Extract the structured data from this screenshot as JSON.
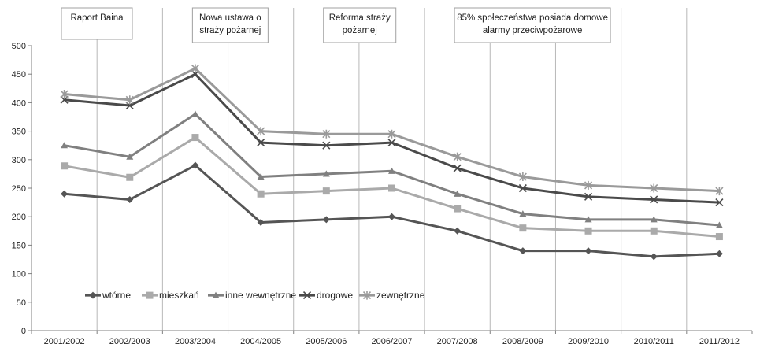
{
  "chart_data": {
    "type": "line",
    "categories": [
      "2001/2002",
      "2002/2003",
      "2003/2004",
      "2004/2005",
      "2005/2006",
      "2006/2007",
      "2007/2008",
      "2008/2009",
      "2009/2010",
      "2010/2011",
      "2011/2012"
    ],
    "ylim": [
      0,
      500
    ],
    "yticks": [
      0,
      50,
      100,
      150,
      200,
      250,
      300,
      350,
      400,
      450,
      500
    ],
    "grid": "vertical category separators",
    "legend_placement": "inside lower-left",
    "series": [
      {
        "name": "wtórne",
        "marker": "diamond",
        "color": "#555555",
        "values": [
          240,
          230,
          290,
          190,
          195,
          200,
          175,
          140,
          140,
          130,
          135
        ]
      },
      {
        "name": "mieszkań",
        "marker": "square",
        "color": "#aaaaaa",
        "values": [
          289,
          269,
          339,
          240,
          245,
          250,
          214,
          180,
          175,
          175,
          165
        ]
      },
      {
        "name": "inne wewnętrzne",
        "marker": "triangle",
        "color": "#808080",
        "values": [
          325,
          305,
          380,
          270,
          275,
          280,
          240,
          205,
          195,
          195,
          185
        ]
      },
      {
        "name": "drogowe",
        "marker": "x",
        "color": "#4a4a4a",
        "values": [
          405,
          395,
          450,
          330,
          325,
          330,
          285,
          250,
          235,
          230,
          225
        ]
      },
      {
        "name": "zewnętrzne",
        "marker": "star",
        "color": "#9a9a9a",
        "values": [
          415,
          405,
          460,
          350,
          345,
          345,
          305,
          270,
          255,
          250,
          245
        ]
      }
    ],
    "annotations": [
      {
        "lines": [
          "Raport Baina"
        ],
        "category_index": 0
      },
      {
        "lines": [
          "Nowa ustawa o",
          "straży pożarnej"
        ],
        "category_index": 2
      },
      {
        "lines": [
          "Reforma straży",
          "pożarnej"
        ],
        "category_index": 4
      },
      {
        "lines": [
          "85% społeczeństwa posiada domowe",
          "alarmy przeciwpożarowe"
        ],
        "category_index": 6
      }
    ]
  }
}
